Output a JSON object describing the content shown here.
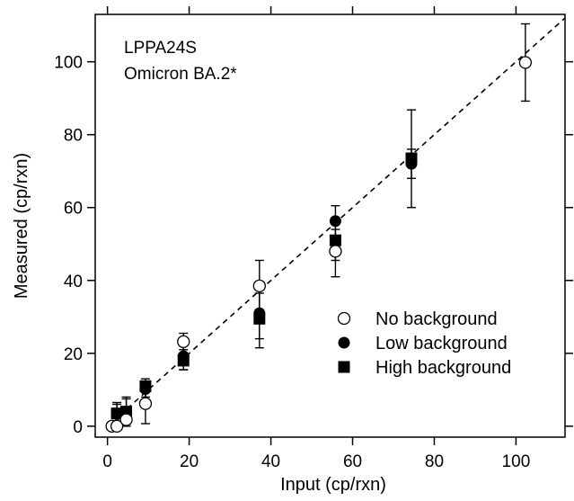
{
  "chart_data": {
    "type": "scatter",
    "title": "",
    "annotations": [
      "LPPA24S",
      "Omicron BA.2*"
    ],
    "xlabel": "Input (cp/rxn)",
    "ylabel": "Measured (cp/rxn)",
    "xlim": [
      -3,
      112
    ],
    "ylim": [
      -3,
      113
    ],
    "x_ticks": [
      0,
      20,
      40,
      60,
      80,
      100
    ],
    "y_ticks": [
      0,
      20,
      40,
      60,
      80,
      100
    ],
    "grid": false,
    "legend_position": "bottom-right",
    "reference_line": {
      "style": "dashed",
      "slope": 1,
      "intercept": 0
    },
    "series": [
      {
        "name": "No background",
        "marker": "open-circle",
        "points": [
          {
            "x": 1.1,
            "y": 0.0,
            "lo": 0.0,
            "hi": 0.5
          },
          {
            "x": 2.3,
            "y": 0.0,
            "lo": 0.0,
            "hi": 0.5
          },
          {
            "x": 4.6,
            "y": 1.8,
            "lo": 0.0,
            "hi": 5.0
          },
          {
            "x": 9.3,
            "y": 6.2,
            "lo": 0.7,
            "hi": 10.5
          },
          {
            "x": 18.6,
            "y": 23.2,
            "lo": 18.0,
            "hi": 25.5
          },
          {
            "x": 37.2,
            "y": 38.5,
            "lo": 31.0,
            "hi": 45.5
          },
          {
            "x": 55.8,
            "y": 48.0,
            "lo": 41.0,
            "hi": 54.0
          },
          {
            "x": 102.3,
            "y": 99.8,
            "lo": 89.2,
            "hi": 110.4
          }
        ]
      },
      {
        "name": "Low background",
        "marker": "filled-circle",
        "points": [
          {
            "x": 2.3,
            "y": 3.3,
            "lo": 0.5,
            "hi": 6.0
          },
          {
            "x": 4.6,
            "y": 3.8,
            "lo": 0.5,
            "hi": 8.0
          },
          {
            "x": 9.3,
            "y": 10.2,
            "lo": 7.0,
            "hi": 12.0
          },
          {
            "x": 18.6,
            "y": 19.2,
            "lo": 15.5,
            "hi": 22.0
          },
          {
            "x": 37.2,
            "y": 31.0,
            "lo": 24.0,
            "hi": 38.0
          },
          {
            "x": 55.8,
            "y": 56.3,
            "lo": 51.0,
            "hi": 60.5
          },
          {
            "x": 74.4,
            "y": 72.0,
            "lo": 68.0,
            "hi": 76.0
          }
        ]
      },
      {
        "name": "High background",
        "marker": "filled-square",
        "points": [
          {
            "x": 2.3,
            "y": 3.5,
            "lo": 0.5,
            "hi": 6.5
          },
          {
            "x": 4.6,
            "y": 4.0,
            "lo": 0.5,
            "hi": 7.5
          },
          {
            "x": 9.3,
            "y": 11.0,
            "lo": 8.0,
            "hi": 13.0
          },
          {
            "x": 18.6,
            "y": 18.0,
            "lo": 15.5,
            "hi": 21.0
          },
          {
            "x": 37.2,
            "y": 29.5,
            "lo": 21.5,
            "hi": 36.5
          },
          {
            "x": 55.8,
            "y": 51.0,
            "lo": 45.5,
            "hi": 56.5
          },
          {
            "x": 74.4,
            "y": 73.5,
            "lo": 60.0,
            "hi": 86.8
          }
        ]
      }
    ]
  }
}
